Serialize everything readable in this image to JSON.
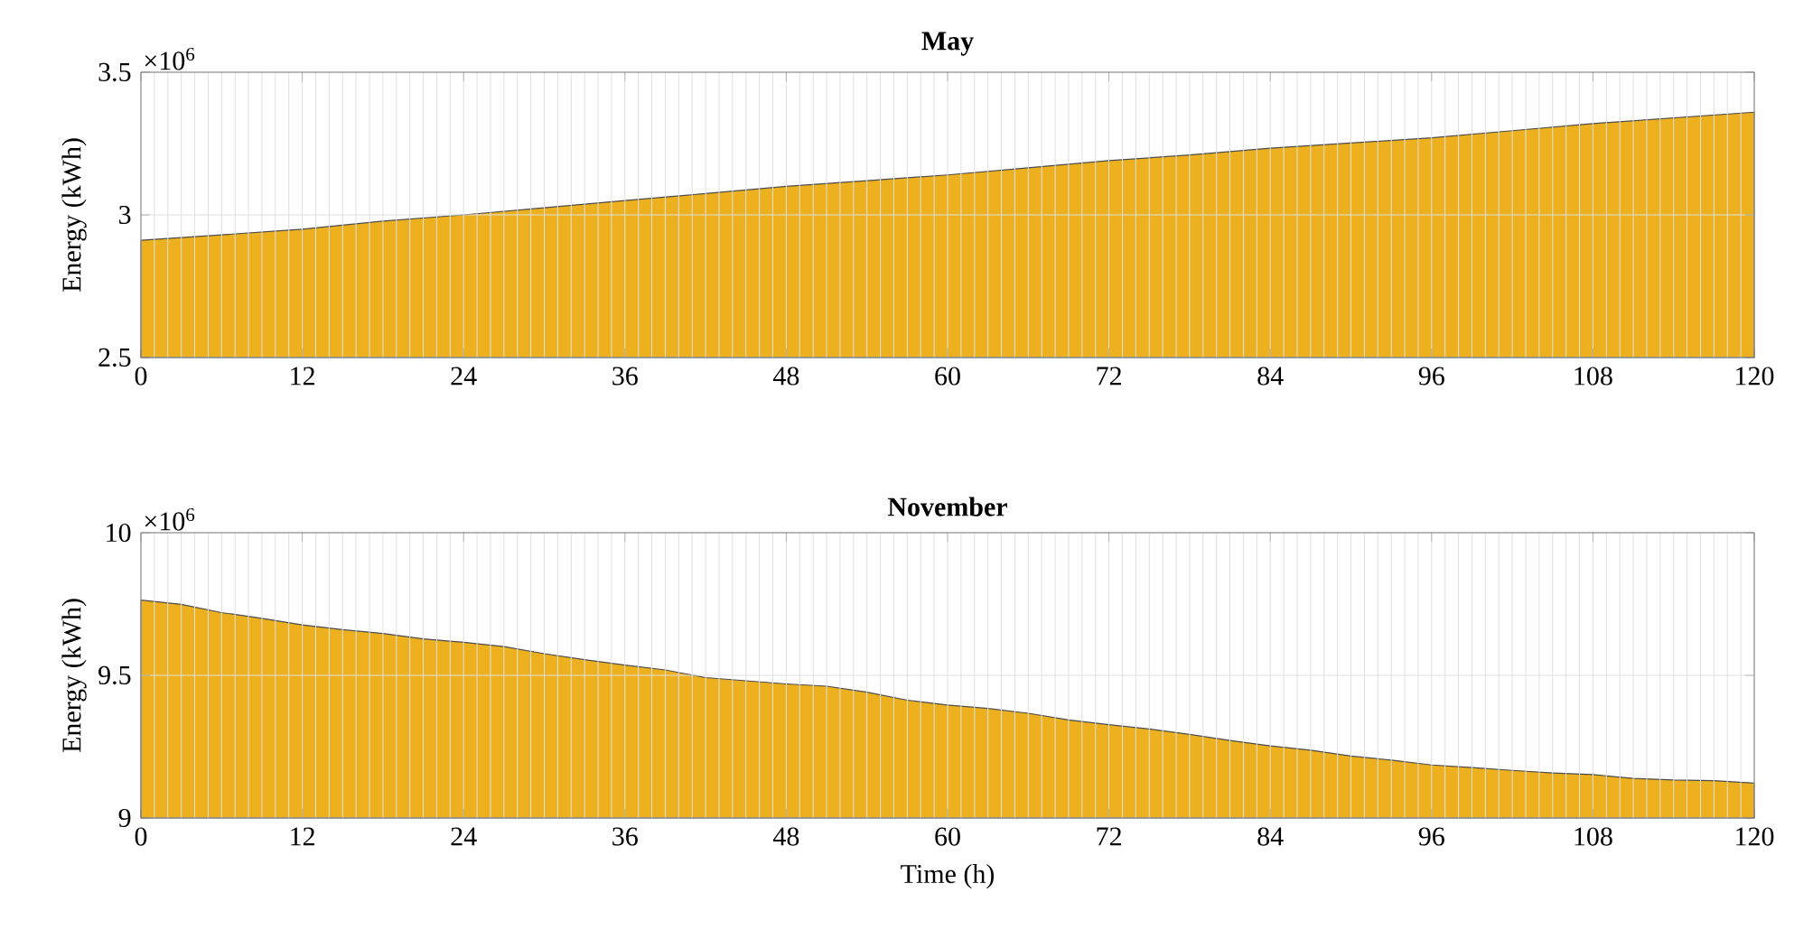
{
  "chart_data": [
    {
      "type": "area",
      "title": "May",
      "ylabel": "Energy (kWh)",
      "annotations": [
        "×10$^{6}$"
      ],
      "color": "#edb120",
      "grid": true,
      "x": [
        0,
        6,
        12,
        18,
        24,
        30,
        36,
        42,
        48,
        54,
        60,
        66,
        72,
        78,
        84,
        90,
        96,
        102,
        108,
        114,
        120
      ],
      "values": [
        2.911,
        2.93,
        2.95,
        2.978,
        3.0,
        3.025,
        3.05,
        3.075,
        3.1,
        3.12,
        3.14,
        3.165,
        3.19,
        3.21,
        3.234,
        3.252,
        3.27,
        3.295,
        3.32,
        3.34,
        3.36
      ],
      "xlim": [
        0,
        120
      ],
      "xticks": [
        0,
        12,
        24,
        36,
        48,
        60,
        72,
        84,
        96,
        108,
        120
      ],
      "ylim": [
        2.5,
        3.5
      ],
      "yticks": [
        2.5,
        3,
        3.5
      ]
    },
    {
      "type": "area",
      "title": "November",
      "xlabel": "Time (h)",
      "ylabel": "Energy (kWh)",
      "annotations": [
        "×10$^{6}$"
      ],
      "color": "#edb120",
      "grid": true,
      "x": [
        0,
        3,
        6,
        9,
        12,
        15,
        18,
        21,
        24,
        27,
        30,
        33,
        36,
        39,
        42,
        45,
        48,
        51,
        54,
        57,
        60,
        63,
        66,
        69,
        72,
        75,
        78,
        81,
        84,
        87,
        90,
        93,
        96,
        99,
        102,
        105,
        108,
        111,
        114,
        117,
        120
      ],
      "values": [
        9.764,
        9.749,
        9.72,
        9.7,
        9.677,
        9.66,
        9.647,
        9.628,
        9.616,
        9.601,
        9.576,
        9.555,
        9.536,
        9.519,
        9.492,
        9.481,
        9.47,
        9.462,
        9.441,
        9.413,
        9.396,
        9.384,
        9.367,
        9.344,
        9.327,
        9.312,
        9.293,
        9.272,
        9.253,
        9.238,
        9.217,
        9.203,
        9.186,
        9.177,
        9.167,
        9.158,
        9.152,
        9.139,
        9.133,
        9.131,
        9.122
      ],
      "xlim": [
        0,
        120
      ],
      "xticks": [
        0,
        12,
        24,
        36,
        48,
        60,
        72,
        84,
        96,
        108,
        120
      ],
      "ylim": [
        9,
        10
      ],
      "yticks": [
        9,
        9.5,
        10
      ]
    }
  ]
}
